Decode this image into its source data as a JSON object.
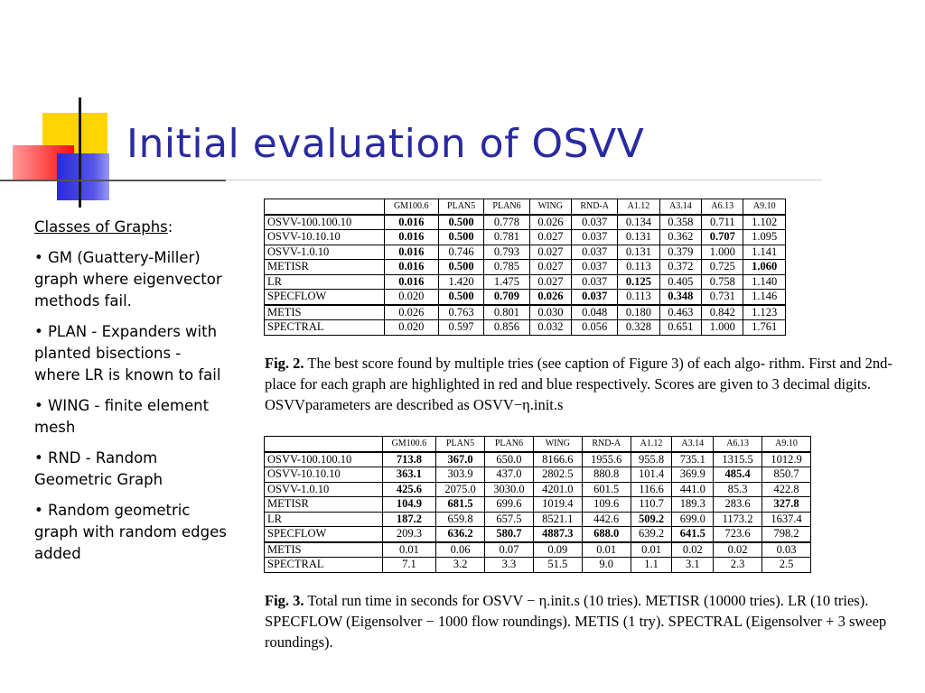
{
  "slide": {
    "title": "Initial evaluation of OSVV"
  },
  "sidebar": {
    "heading": "Classes of Graphs",
    "items": [
      "• GM (Guattery-Miller) graph where eigenvector methods fail.",
      "• PLAN - Expanders with planted bisections - where LR is known to fail",
      "• WING - finite element mesh",
      "• RND - Random Geometric Graph",
      "• Random geometric graph with random edges added"
    ]
  },
  "table1": {
    "headers": [
      "",
      "GM100.6",
      "PLAN5",
      "PLAN6",
      "WING",
      "RND-A",
      "A1.12",
      "A3.14",
      "A6.13",
      "A9.10"
    ],
    "rows": [
      [
        "OSVV-100.100.10",
        "0.016",
        "0.500",
        "0.778",
        "0.026",
        "0.037",
        "0.134",
        "0.358",
        "0.711",
        "1.102"
      ],
      [
        "OSVV-10.10.10",
        "0.016",
        "0.500",
        "0.781",
        "0.027",
        "0.037",
        "0.131",
        "0.362",
        "0.707",
        "1.095"
      ],
      [
        "OSVV-1.0.10",
        "0.016",
        "0.746",
        "0.793",
        "0.027",
        "0.037",
        "0.131",
        "0.379",
        "1.000",
        "1.141"
      ],
      [
        "METISR",
        "0.016",
        "0.500",
        "0.785",
        "0.027",
        "0.037",
        "0.113",
        "0.372",
        "0.725",
        "1.060"
      ],
      [
        "LR",
        "0.016",
        "1.420",
        "1.475",
        "0.027",
        "0.037",
        "0.125",
        "0.405",
        "0.758",
        "1.140"
      ],
      [
        "SPECFLOW",
        "0.020",
        "0.500",
        "0.709",
        "0.026",
        "0.037",
        "0.113",
        "0.348",
        "0.731",
        "1.146"
      ],
      [
        "METIS",
        "0.026",
        "0.763",
        "0.801",
        "0.030",
        "0.048",
        "0.180",
        "0.463",
        "0.842",
        "1.123"
      ],
      [
        "SPECTRAL",
        "0.020",
        "0.597",
        "0.856",
        "0.032",
        "0.056",
        "0.328",
        "0.651",
        "1.000",
        "1.761"
      ]
    ],
    "bold": [
      [
        0,
        1
      ],
      [
        0,
        2
      ],
      [
        1,
        1
      ],
      [
        1,
        2
      ],
      [
        1,
        8
      ],
      [
        2,
        1
      ],
      [
        3,
        1
      ],
      [
        3,
        2
      ],
      [
        3,
        9
      ],
      [
        4,
        1
      ],
      [
        4,
        6
      ],
      [
        5,
        2
      ],
      [
        5,
        3
      ],
      [
        5,
        4
      ],
      [
        5,
        5
      ],
      [
        5,
        7
      ]
    ]
  },
  "caption1": {
    "label": "Fig. 2.",
    "text": "The best score found by multiple tries (see caption of Figure 3) of each algo- rithm. First and 2nd-place for each graph are highlighted in red and blue respectively. Scores are given to 3 decimal digits. OSVVparameters are described as OSVV−η.init.s"
  },
  "table2": {
    "headers": [
      "",
      "GM100.6",
      "PLAN5",
      "PLAN6",
      "WING",
      "RND-A",
      "A1.12",
      "A3.14",
      "A6.13",
      "A9.10"
    ],
    "rows": [
      [
        "OSVV-100.100.10",
        "713.8",
        "367.0",
        "650.0",
        "8166.6",
        "1955.6",
        "955.8",
        "735.1",
        "1315.5",
        "1012.9"
      ],
      [
        "OSVV-10.10.10",
        "363.1",
        "303.9",
        "437.0",
        "2802.5",
        "880.8",
        "101.4",
        "369.9",
        "485.4",
        "850.7"
      ],
      [
        "OSVV-1.0.10",
        "425.6",
        "2075.0",
        "3030.0",
        "4201.0",
        "601.5",
        "116.6",
        "441.0",
        "85.3",
        "422.8"
      ],
      [
        "METISR",
        "104.9",
        "681.5",
        "699.6",
        "1019.4",
        "109.6",
        "110.7",
        "189.3",
        "283.6",
        "327.8"
      ],
      [
        "LR",
        "187.2",
        "659.8",
        "657.5",
        "8521.1",
        "442.6",
        "509.2",
        "699.0",
        "1173.2",
        "1637.4"
      ],
      [
        "SPECFLOW",
        "209.3",
        "636.2",
        "580.7",
        "4887.3",
        "688.0",
        "639.2",
        "641.5",
        "723.6",
        "798.2"
      ],
      [
        "METIS",
        "0.01",
        "0.06",
        "0.07",
        "0.09",
        "0.01",
        "0.01",
        "0.02",
        "0.02",
        "0.03"
      ],
      [
        "SPECTRAL",
        "7.1",
        "3.2",
        "3.3",
        "51.5",
        "9.0",
        "1.1",
        "3.1",
        "2.3",
        "2.5"
      ]
    ],
    "bold": [
      [
        0,
        1
      ],
      [
        0,
        2
      ],
      [
        1,
        1
      ],
      [
        1,
        8
      ],
      [
        2,
        1
      ],
      [
        3,
        1
      ],
      [
        3,
        2
      ],
      [
        3,
        9
      ],
      [
        4,
        1
      ],
      [
        4,
        6
      ],
      [
        5,
        2
      ],
      [
        5,
        3
      ],
      [
        5,
        4
      ],
      [
        5,
        5
      ],
      [
        5,
        7
      ]
    ]
  },
  "caption2": {
    "label": "Fig. 3.",
    "text": "Total run time in seconds for OSVV − η.init.s (10 tries). METISR (10000 tries). LR (10 tries). SPECFLOW (Eigensolver − 1000 flow roundings). METIS (1 try). SPECTRAL (Eigensolver + 3 sweep roundings)."
  }
}
